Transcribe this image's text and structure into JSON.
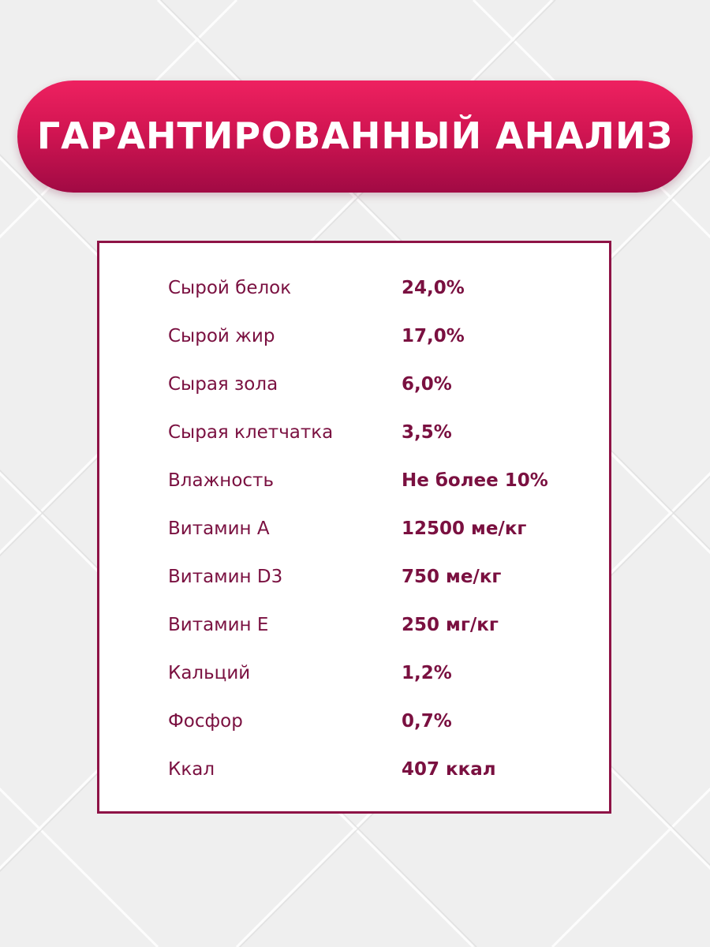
{
  "title": "ГАРАНТИРОВАННЫЙ АНАЛИЗ",
  "colors": {
    "banner_top": "#ee2160",
    "banner_bottom": "#a10a44",
    "accent": "#7a1040",
    "panel_border": "#8e1346",
    "background": "#eeeeee"
  },
  "analysis": [
    {
      "label": "Сырой белок",
      "value": "24,0%"
    },
    {
      "label": "Сырой жир",
      "value": "17,0%"
    },
    {
      "label": "Сырая зола",
      "value": "6,0%"
    },
    {
      "label": "Сырая клетчатка",
      "value": "3,5%"
    },
    {
      "label": "Влажность",
      "value": "Не более 10%"
    },
    {
      "label": "Витамин А",
      "value": "12500 ме/кг"
    },
    {
      "label": "Витамин D3",
      "value": "750 ме/кг"
    },
    {
      "label": "Витамин Е",
      "value": "250 мг/кг"
    },
    {
      "label": "Кальций",
      "value": "1,2%"
    },
    {
      "label": "Фосфор",
      "value": "0,7%"
    },
    {
      "label": "Ккал",
      "value": "407 ккал"
    }
  ]
}
